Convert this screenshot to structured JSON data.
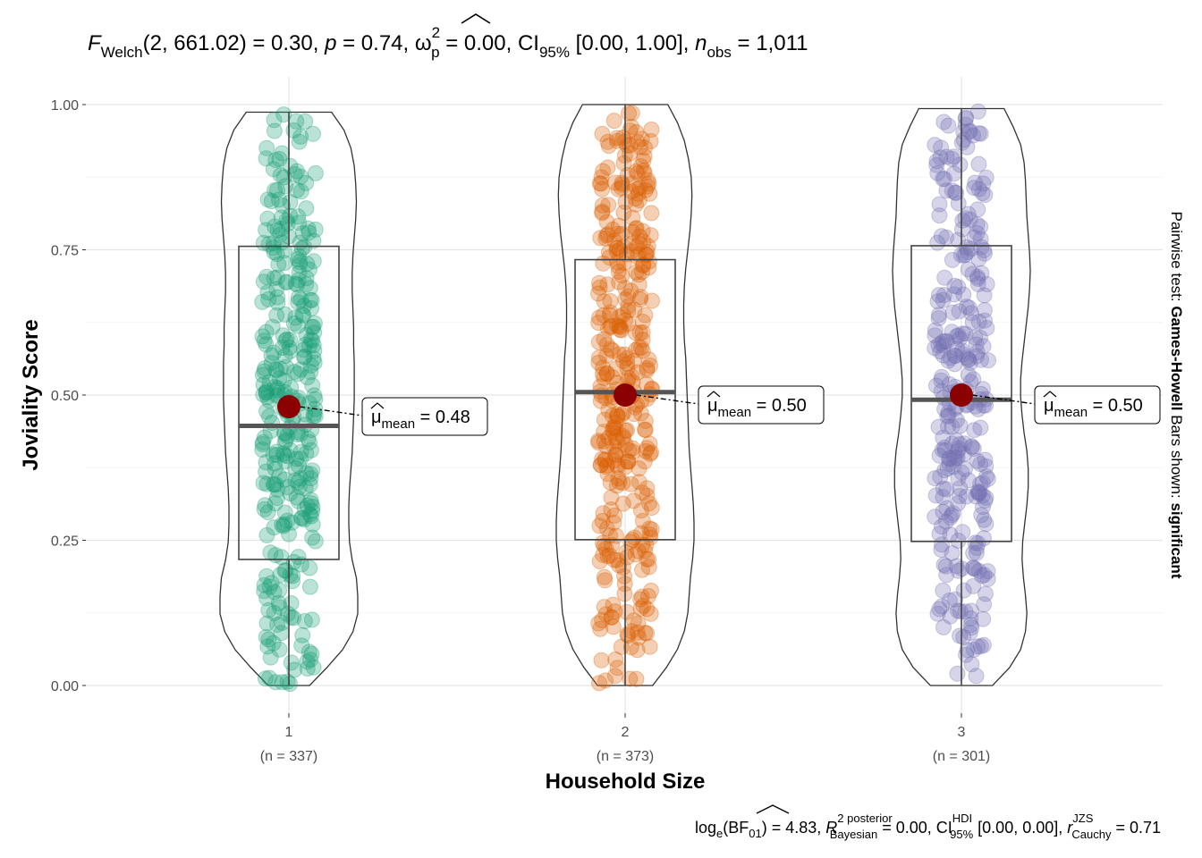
{
  "chart_data": {
    "type": "violin-box-scatter",
    "subtitle": {
      "prefix": "F",
      "test_sub": "Welch",
      "args": "(2, 661.02) = 0.30, ",
      "p_label": "p",
      "p_value": " = 0.74, ",
      "effect": "ω",
      "effect_sup": "2",
      "effect_sub": "p",
      "effect_value": " = 0.00, CI",
      "ci_sub": "95%",
      "ci_value": " [0.00, 1.00], ",
      "n_label": "n",
      "n_sub": "obs",
      "n_value": " = 1,011"
    },
    "caption": {
      "log": "log",
      "log_sub": "e",
      "bf": "(BF",
      "bf_sub": "01",
      "bf_value": ") = 4.83, ",
      "r": "R",
      "r_sup": "2 posterior",
      "r_sub": "Bayesian",
      "r_value": " = 0.00, CI",
      "ci_sup": "HDI",
      "ci_sub": "95%",
      "ci_value": " [0.00, 0.00], ",
      "rc": "r",
      "rc_sup": "JZS",
      "rc_sub": "Cauchy",
      "rc_value": " = 0.71"
    },
    "right_label": {
      "prefix": "Pairwise test: ",
      "test": "Games-Howell",
      "middle": " Bars shown: ",
      "shown": "significant"
    },
    "xlabel": "Household Size",
    "ylabel": "Joviality Score",
    "ylim": [
      0,
      1
    ],
    "yticks": [
      "0.00",
      "0.25",
      "0.50",
      "0.75",
      "1.00"
    ],
    "groups": [
      {
        "category": "1",
        "n_label": "(n = 337)",
        "n": 337,
        "color": "#1b9e77",
        "min": 0.0,
        "q1": 0.217,
        "median": 0.447,
        "q3": 0.756,
        "max": 0.987,
        "mean": 0.48,
        "mean_text": " = 0.48",
        "density": [
          0.3,
          0.55,
          0.78,
          0.93,
          1.0,
          1.0,
          0.98,
          0.92,
          0.88,
          0.87,
          0.87,
          0.88,
          0.9,
          0.92,
          0.93,
          0.94,
          0.95,
          0.95,
          0.95,
          0.94,
          0.94,
          0.93,
          0.92,
          0.92,
          0.93,
          0.95,
          0.97,
          0.98,
          0.97,
          0.95,
          0.9,
          0.8,
          0.62
        ]
      },
      {
        "category": "2",
        "n_label": "(n = 373)",
        "n": 373,
        "color": "#d95f02",
        "min": 0.0,
        "q1": 0.251,
        "median": 0.505,
        "q3": 0.733,
        "max": 1.0,
        "mean": 0.5,
        "mean_text": " = 0.50",
        "density": [
          0.4,
          0.6,
          0.76,
          0.86,
          0.91,
          0.93,
          0.95,
          0.98,
          1.0,
          1.0,
          0.99,
          0.97,
          0.95,
          0.93,
          0.92,
          0.91,
          0.9,
          0.89,
          0.88,
          0.86,
          0.85,
          0.85,
          0.86,
          0.88,
          0.91,
          0.94,
          0.96,
          0.97,
          0.96,
          0.92,
          0.86,
          0.76,
          0.62
        ]
      },
      {
        "category": "3",
        "n_label": "(n = 301)",
        "n": 301,
        "color": "#7570b3",
        "min": 0.0,
        "q1": 0.248,
        "median": 0.492,
        "q3": 0.757,
        "max": 0.993,
        "mean": 0.5,
        "mean_text": " = 0.50",
        "density": [
          0.45,
          0.7,
          0.86,
          0.93,
          0.95,
          0.93,
          0.9,
          0.88,
          0.89,
          0.92,
          0.95,
          0.97,
          0.97,
          0.95,
          0.91,
          0.88,
          0.86,
          0.86,
          0.88,
          0.91,
          0.94,
          0.97,
          0.99,
          1.0,
          0.99,
          0.97,
          0.95,
          0.94,
          0.93,
          0.91,
          0.86,
          0.75,
          0.62
        ]
      }
    ],
    "legend": "none",
    "grid": true
  }
}
